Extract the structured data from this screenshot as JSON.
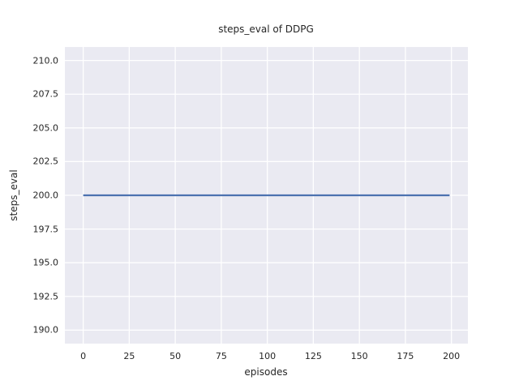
{
  "chart_data": {
    "type": "line",
    "title": "steps_eval of DDPG",
    "xlabel": "episodes",
    "ylabel": "steps_eval",
    "series": [
      {
        "name": "steps_eval of DDPG",
        "points": [
          [
            0,
            200
          ],
          [
            199,
            200
          ]
        ],
        "description": "constant value 200 for every episode from 0 to 199",
        "color": "#4c72b0"
      }
    ],
    "xticks": [
      0,
      25,
      50,
      75,
      100,
      125,
      150,
      175,
      200
    ],
    "xtick_labels": [
      "0",
      "25",
      "50",
      "75",
      "100",
      "125",
      "150",
      "175",
      "200"
    ],
    "yticks": [
      190.0,
      192.5,
      195.0,
      197.5,
      200.0,
      202.5,
      205.0,
      207.5,
      210.0
    ],
    "ytick_labels": [
      "190.0",
      "192.5",
      "195.0",
      "197.5",
      "200.0",
      "202.5",
      "205.0",
      "207.5",
      "210.0"
    ],
    "xlim": [
      -9.95,
      208.95
    ],
    "ylim": [
      189.0,
      211.0
    ],
    "grid": true,
    "legend": null,
    "style": "seaborn-darkgrid",
    "colors": {
      "plot_background": "#eaeaf2",
      "gridline": "#ffffff",
      "text": "#262626",
      "figure_background": "#ffffff"
    }
  }
}
